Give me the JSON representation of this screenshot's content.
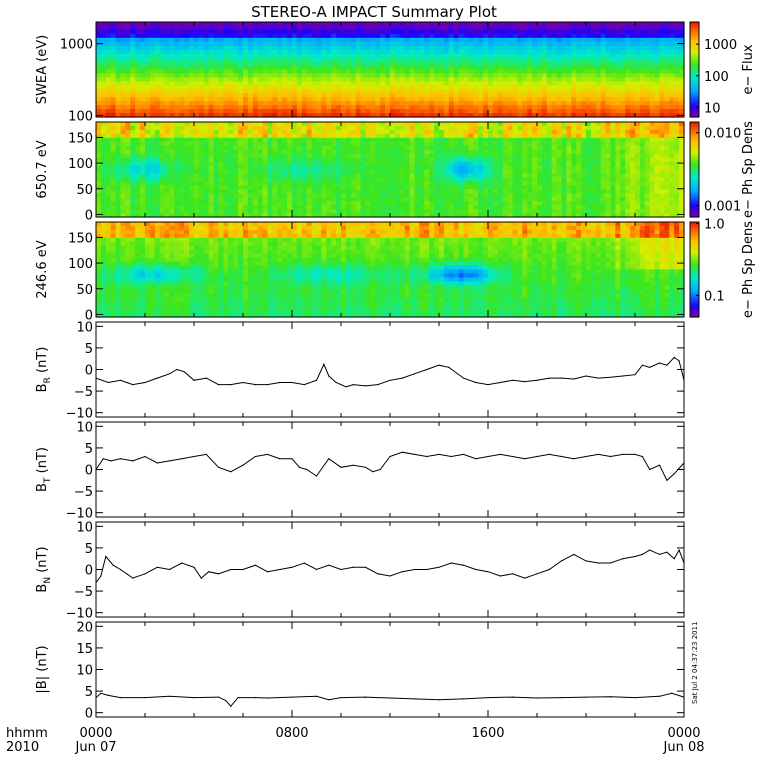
{
  "title": "STEREO-A IMPACT Summary Plot",
  "time_axis": {
    "label_top": "hhmm",
    "label_bottom": "2010",
    "ticks": [
      {
        "hour": 0,
        "label": "0000",
        "date": "Jun 07"
      },
      {
        "hour": 8,
        "label": "0800",
        "date": ""
      },
      {
        "hour": 16,
        "label": "1600",
        "date": ""
      },
      {
        "hour": 24,
        "label": "0000",
        "date": "Jun 08"
      }
    ],
    "range_hours": [
      0,
      24
    ]
  },
  "timestamp": "Sat Jul  2 04:37:23 2011",
  "colors": {
    "line": "#000000",
    "axis": "#000000"
  },
  "chart_data": [
    {
      "id": "swea",
      "type": "heatmap",
      "ylabel": "SWEA (eV)",
      "yscale": "log",
      "ylim": [
        95,
        2000
      ],
      "yticks": [
        {
          "value": 100,
          "label": "100"
        },
        {
          "value": 1000,
          "label": "1000"
        }
      ],
      "colorbar": {
        "label": "e− Flux",
        "scale": "log",
        "range": [
          5,
          5000
        ],
        "ticks": [
          {
            "value": 10,
            "label": "10"
          },
          {
            "value": 100,
            "label": "100"
          },
          {
            "value": 1000,
            "label": "1000"
          }
        ]
      }
    },
    {
      "id": "pad650",
      "type": "heatmap",
      "ylabel": "650.7 eV",
      "yscale": "linear",
      "ylim": [
        -5,
        180
      ],
      "yticks": [
        {
          "value": 0,
          "label": "0"
        },
        {
          "value": 50,
          "label": "50"
        },
        {
          "value": 100,
          "label": "100"
        },
        {
          "value": 150,
          "label": "150"
        }
      ],
      "colorbar": {
        "label": "e− Ph Sp Dens",
        "scale": "log",
        "range": [
          0.0007,
          0.014
        ],
        "ticks": [
          {
            "value": 0.001,
            "label": "0.001"
          },
          {
            "value": 0.01,
            "label": "0.010"
          }
        ]
      }
    },
    {
      "id": "pad246",
      "type": "heatmap",
      "ylabel": "246.6 eV",
      "yscale": "linear",
      "ylim": [
        -5,
        180
      ],
      "yticks": [
        {
          "value": 0,
          "label": "0"
        },
        {
          "value": 50,
          "label": "50"
        },
        {
          "value": 100,
          "label": "100"
        },
        {
          "value": 150,
          "label": "150"
        }
      ],
      "colorbar": {
        "label": "e− Ph Sp Dens",
        "scale": "log",
        "range": [
          0.05,
          1.05
        ],
        "ticks": [
          {
            "value": 0.1,
            "label": "0.1"
          },
          {
            "value": 1.0,
            "label": "1.0"
          }
        ]
      }
    },
    {
      "id": "br",
      "type": "line",
      "ylabel_main": "B",
      "ylabel_sub": "R",
      "ylabel_unit": " (nT)",
      "ylim": [
        -11,
        11
      ],
      "yticks": [
        {
          "value": -10,
          "label": "−10"
        },
        {
          "value": -5,
          "label": "−5"
        },
        {
          "value": 0,
          "label": "0"
        },
        {
          "value": 5,
          "label": "5"
        },
        {
          "value": 10,
          "label": "10"
        }
      ],
      "x": [
        0,
        0.5,
        1,
        1.5,
        2,
        2.5,
        3,
        3.3,
        3.6,
        4,
        4.5,
        5,
        5.5,
        6,
        6.5,
        7,
        7.5,
        8,
        8.5,
        9,
        9.3,
        9.5,
        9.8,
        10.2,
        10.5,
        11,
        11.5,
        12,
        12.5,
        13,
        13.5,
        14,
        14.4,
        15,
        15.5,
        16,
        16.5,
        17,
        17.5,
        18,
        18.5,
        19,
        19.5,
        20,
        20.5,
        21,
        21.5,
        22,
        22.3,
        22.6,
        23,
        23.3,
        23.6,
        23.8,
        24
      ],
      "values": [
        -2.0,
        -3.0,
        -2.5,
        -3.5,
        -3.0,
        -2.0,
        -1.0,
        0.0,
        -0.5,
        -2.5,
        -2.0,
        -3.5,
        -3.5,
        -3.0,
        -3.5,
        -3.5,
        -3.0,
        -3.0,
        -3.5,
        -2.5,
        1.2,
        -1.5,
        -3.0,
        -4.0,
        -3.5,
        -3.8,
        -3.5,
        -2.5,
        -2.0,
        -1.0,
        0.0,
        1.0,
        0.5,
        -2.0,
        -3.0,
        -3.5,
        -3.0,
        -2.5,
        -2.8,
        -2.5,
        -2.0,
        -2.0,
        -2.2,
        -1.5,
        -2.0,
        -1.8,
        -1.5,
        -1.2,
        1.0,
        0.5,
        1.5,
        1.0,
        2.8,
        2.0,
        -2.5
      ]
    },
    {
      "id": "bt",
      "type": "line",
      "ylabel_main": "B",
      "ylabel_sub": "T",
      "ylabel_unit": " (nT)",
      "ylim": [
        -11,
        11
      ],
      "yticks": [
        {
          "value": -10,
          "label": "−10"
        },
        {
          "value": -5,
          "label": "−5"
        },
        {
          "value": 0,
          "label": "0"
        },
        {
          "value": 5,
          "label": "5"
        },
        {
          "value": 10,
          "label": "10"
        }
      ],
      "x": [
        0,
        0.3,
        0.6,
        1,
        1.5,
        2,
        2.5,
        3,
        3.5,
        4,
        4.5,
        5,
        5.5,
        6,
        6.5,
        7,
        7.5,
        8,
        8.3,
        8.6,
        9,
        9.5,
        10,
        10.5,
        11,
        11.3,
        11.6,
        12,
        12.5,
        13,
        13.5,
        14,
        14.5,
        15,
        15.5,
        16,
        16.5,
        17,
        17.5,
        18,
        18.5,
        19,
        19.5,
        20,
        20.5,
        21,
        21.5,
        22,
        22.3,
        22.6,
        23,
        23.3,
        23.6,
        24
      ],
      "values": [
        0.0,
        2.5,
        2.0,
        2.5,
        2.0,
        3.0,
        1.5,
        2.0,
        2.5,
        3.0,
        3.5,
        0.5,
        -0.5,
        1.0,
        3.0,
        3.5,
        2.5,
        2.5,
        0.5,
        0.0,
        -1.5,
        2.5,
        0.5,
        1.0,
        0.5,
        -0.5,
        0.0,
        3.0,
        4.0,
        3.5,
        3.0,
        3.5,
        3.0,
        3.5,
        2.5,
        3.0,
        3.5,
        3.0,
        2.5,
        3.0,
        3.5,
        3.0,
        2.5,
        3.0,
        3.5,
        3.0,
        3.5,
        3.5,
        3.0,
        0.0,
        1.0,
        -2.5,
        -1.0,
        1.5
      ]
    },
    {
      "id": "bn",
      "type": "line",
      "ylabel_main": "B",
      "ylabel_sub": "N",
      "ylabel_unit": " (nT)",
      "ylim": [
        -11,
        11
      ],
      "yticks": [
        {
          "value": -10,
          "label": "−10"
        },
        {
          "value": -5,
          "label": "−5"
        },
        {
          "value": 0,
          "label": "0"
        },
        {
          "value": 5,
          "label": "5"
        },
        {
          "value": 10,
          "label": "10"
        }
      ],
      "x": [
        0,
        0.2,
        0.4,
        0.7,
        1,
        1.5,
        2,
        2.5,
        3,
        3.5,
        4,
        4.3,
        4.6,
        5,
        5.5,
        6,
        6.5,
        7,
        7.5,
        8,
        8.5,
        9,
        9.5,
        10,
        10.5,
        11,
        11.5,
        12,
        12.5,
        13,
        13.5,
        14,
        14.5,
        15,
        15.5,
        16,
        16.5,
        17,
        17.5,
        18,
        18.5,
        19,
        19.5,
        20,
        20.5,
        21,
        21.5,
        22,
        22.3,
        22.6,
        23,
        23.3,
        23.6,
        23.8,
        24
      ],
      "values": [
        -3.0,
        -1.5,
        3.0,
        1.0,
        0.0,
        -2.0,
        -1.0,
        0.5,
        0.0,
        1.5,
        0.5,
        -2.0,
        -0.5,
        -1.0,
        0.0,
        0.0,
        1.0,
        -0.5,
        0.0,
        0.5,
        1.5,
        0.0,
        1.0,
        0.0,
        0.5,
        0.5,
        -1.0,
        -1.5,
        -0.5,
        0.0,
        0.0,
        0.5,
        1.5,
        1.0,
        0.0,
        -0.5,
        -1.5,
        -1.0,
        -2.0,
        -1.0,
        0.0,
        2.0,
        3.5,
        2.0,
        1.5,
        1.5,
        2.5,
        3.0,
        3.5,
        4.5,
        3.5,
        4.0,
        2.5,
        4.5,
        1.5
      ]
    },
    {
      "id": "bmag",
      "type": "line",
      "ylabel_main": "|B|",
      "ylabel_sub": "",
      "ylabel_unit": " (nT)",
      "ylim": [
        -1,
        21
      ],
      "yticks": [
        {
          "value": 0,
          "label": "0"
        },
        {
          "value": 5,
          "label": "5"
        },
        {
          "value": 10,
          "label": "10"
        },
        {
          "value": 15,
          "label": "15"
        },
        {
          "value": 20,
          "label": "20"
        }
      ],
      "x": [
        0,
        0.2,
        0.5,
        1,
        2,
        3,
        4,
        5,
        5.3,
        5.5,
        5.8,
        6.5,
        7,
        8,
        9,
        9.5,
        10,
        11,
        12,
        13,
        14,
        15,
        16,
        17,
        18,
        19,
        20,
        21,
        22,
        23,
        23.5,
        24
      ],
      "values": [
        3.5,
        4.5,
        4.0,
        3.5,
        3.5,
        3.8,
        3.5,
        3.6,
        2.8,
        1.5,
        3.5,
        3.5,
        3.4,
        3.6,
        3.8,
        3.0,
        3.5,
        3.6,
        3.4,
        3.2,
        3.0,
        3.2,
        3.5,
        3.6,
        3.4,
        3.5,
        3.6,
        3.7,
        3.5,
        3.8,
        4.5,
        3.6
      ]
    }
  ]
}
